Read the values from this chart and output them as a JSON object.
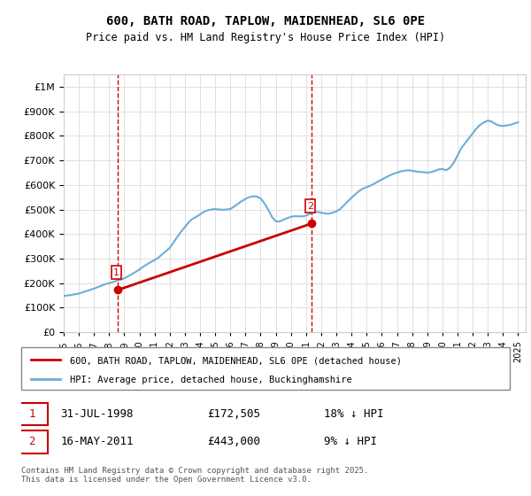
{
  "title": "600, BATH ROAD, TAPLOW, MAIDENHEAD, SL6 0PE",
  "subtitle": "Price paid vs. HM Land Registry's House Price Index (HPI)",
  "ylabel_ticks": [
    "£0",
    "£100K",
    "£200K",
    "£300K",
    "£400K",
    "£500K",
    "£600K",
    "£700K",
    "£800K",
    "£900K",
    "£1M"
  ],
  "ytick_values": [
    0,
    100000,
    200000,
    300000,
    400000,
    500000,
    600000,
    700000,
    800000,
    900000,
    1000000
  ],
  "ylim": [
    0,
    1050000
  ],
  "hpi_color": "#6baed6",
  "price_color": "#cc0000",
  "marker_color_1": "#cc0000",
  "marker_color_2": "#cc0000",
  "vline_color": "#cc0000",
  "annotation_box_color": "#cc0000",
  "background_color": "#ffffff",
  "grid_color": "#e0e0e0",
  "legend_label_1": "600, BATH ROAD, TAPLOW, MAIDENHEAD, SL6 0PE (detached house)",
  "legend_label_2": "HPI: Average price, detached house, Buckinghamshire",
  "table_row1": [
    "1",
    "31-JUL-1998",
    "£172,505",
    "18% ↓ HPI"
  ],
  "table_row2": [
    "2",
    "16-MAY-2011",
    "£443,000",
    "9% ↓ HPI"
  ],
  "footer": "Contains HM Land Registry data © Crown copyright and database right 2025.\nThis data is licensed under the Open Government Licence v3.0.",
  "sale1_year": 1998.58,
  "sale1_price": 172505,
  "sale2_year": 2011.37,
  "sale2_price": 443000,
  "hpi_years": [
    1995,
    1995.25,
    1995.5,
    1995.75,
    1996,
    1996.25,
    1996.5,
    1996.75,
    1997,
    1997.25,
    1997.5,
    1997.75,
    1998,
    1998.25,
    1998.5,
    1998.75,
    1999,
    1999.25,
    1999.5,
    1999.75,
    2000,
    2000.25,
    2000.5,
    2000.75,
    2001,
    2001.25,
    2001.5,
    2001.75,
    2002,
    2002.25,
    2002.5,
    2002.75,
    2003,
    2003.25,
    2003.5,
    2003.75,
    2004,
    2004.25,
    2004.5,
    2004.75,
    2005,
    2005.25,
    2005.5,
    2005.75,
    2006,
    2006.25,
    2006.5,
    2006.75,
    2007,
    2007.25,
    2007.5,
    2007.75,
    2008,
    2008.25,
    2008.5,
    2008.75,
    2009,
    2009.25,
    2009.5,
    2009.75,
    2010,
    2010.25,
    2010.5,
    2010.75,
    2011,
    2011.25,
    2011.5,
    2011.75,
    2012,
    2012.25,
    2012.5,
    2012.75,
    2013,
    2013.25,
    2013.5,
    2013.75,
    2014,
    2014.25,
    2014.5,
    2014.75,
    2015,
    2015.25,
    2015.5,
    2015.75,
    2016,
    2016.25,
    2016.5,
    2016.75,
    2017,
    2017.25,
    2017.5,
    2017.75,
    2018,
    2018.25,
    2018.5,
    2018.75,
    2019,
    2019.25,
    2019.5,
    2019.75,
    2020,
    2020.25,
    2020.5,
    2020.75,
    2021,
    2021.25,
    2021.5,
    2021.75,
    2022,
    2022.25,
    2022.5,
    2022.75,
    2023,
    2023.25,
    2023.5,
    2023.75,
    2024,
    2024.25,
    2024.5,
    2024.75,
    2025
  ],
  "hpi_values": [
    148000,
    150000,
    152000,
    155000,
    158000,
    163000,
    168000,
    173000,
    178000,
    184000,
    190000,
    196000,
    200000,
    205000,
    210000,
    214000,
    220000,
    228000,
    237000,
    246000,
    256000,
    267000,
    277000,
    286000,
    294000,
    304000,
    318000,
    330000,
    344000,
    366000,
    389000,
    410000,
    428000,
    448000,
    462000,
    470000,
    480000,
    490000,
    497000,
    500000,
    502000,
    500000,
    499000,
    500000,
    502000,
    512000,
    523000,
    534000,
    543000,
    550000,
    554000,
    553000,
    545000,
    525000,
    500000,
    470000,
    452000,
    451000,
    458000,
    465000,
    470000,
    473000,
    472000,
    472000,
    475000,
    482000,
    488000,
    490000,
    487000,
    484000,
    483000,
    487000,
    492000,
    502000,
    517000,
    533000,
    548000,
    562000,
    575000,
    585000,
    591000,
    597000,
    605000,
    614000,
    622000,
    630000,
    638000,
    645000,
    650000,
    655000,
    658000,
    660000,
    658000,
    655000,
    653000,
    652000,
    650000,
    652000,
    657000,
    663000,
    665000,
    660000,
    670000,
    690000,
    720000,
    750000,
    770000,
    790000,
    810000,
    830000,
    845000,
    855000,
    862000,
    858000,
    848000,
    842000,
    840000,
    842000,
    845000,
    850000,
    855000
  ],
  "price_years": [
    1998.58,
    2011.37
  ],
  "price_values": [
    172505,
    443000
  ],
  "xtick_years": [
    1995,
    1996,
    1997,
    1998,
    1999,
    2000,
    2001,
    2002,
    2003,
    2004,
    2005,
    2006,
    2007,
    2008,
    2009,
    2010,
    2011,
    2012,
    2013,
    2014,
    2015,
    2016,
    2017,
    2018,
    2019,
    2020,
    2021,
    2022,
    2023,
    2024,
    2025
  ]
}
